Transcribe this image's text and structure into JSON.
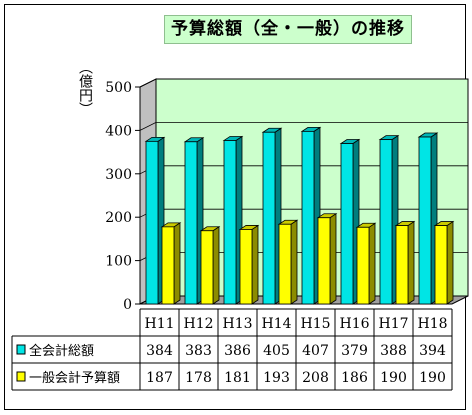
{
  "chart_data": {
    "type": "bar",
    "title": "予算総額（全・一般）の推移",
    "ylabel": "（億円）",
    "ylim": [
      0,
      500
    ],
    "yticks": [
      0,
      100,
      200,
      300,
      400,
      500
    ],
    "categories": [
      "H11",
      "H12",
      "H13",
      "H14",
      "H15",
      "H16",
      "H17",
      "H18"
    ],
    "series": [
      {
        "name": "全会計総額",
        "values": [
          384,
          383,
          386,
          405,
          407,
          379,
          388,
          394
        ],
        "color": "#00e5e5"
      },
      {
        "name": "一般会計予算額",
        "values": [
          187,
          178,
          181,
          193,
          208,
          186,
          190,
          190
        ],
        "color": "#ffff00"
      }
    ],
    "data_table": true,
    "grid": true,
    "plot_background": "#ccffcc"
  }
}
